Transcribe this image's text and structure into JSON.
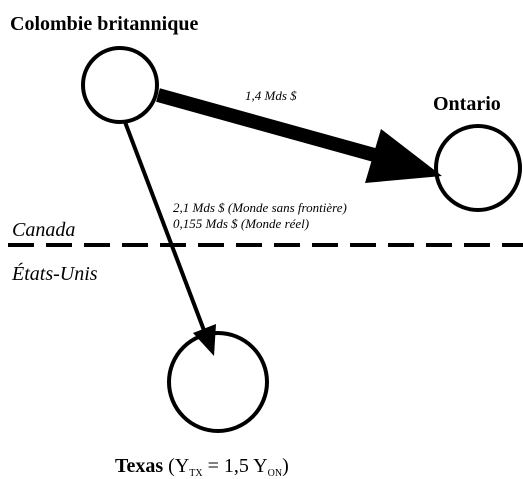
{
  "nodes": [
    {
      "label": "Colombie britannique"
    },
    {
      "label": "Ontario"
    },
    {
      "label": "Texas",
      "formula": [
        "(Y",
        "TX",
        " = 1,5 Y",
        "ON",
        ")"
      ]
    }
  ],
  "edges": [
    {
      "label": "1,4 Mds $"
    },
    {
      "labels": [
        "2,1 Mds $ (Monde sans frontière)",
        "0,155 Mds $ (Monde réel)"
      ]
    }
  ],
  "border": {
    "top": "Canada",
    "bottom": "États-Unis"
  }
}
